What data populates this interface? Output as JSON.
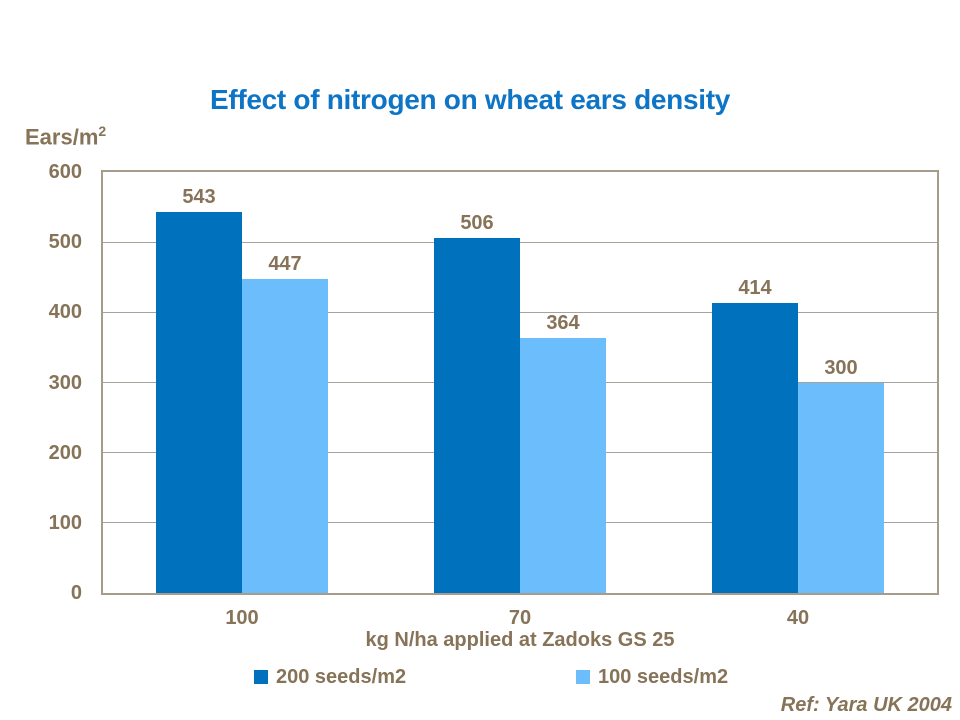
{
  "page": {
    "ref_note": "Ref: Yara UK 2004"
  },
  "colors": {
    "title_blue": "#0E74C6",
    "text_brown": "#867358",
    "frame_tan": "#A69C8B",
    "gridline_tan": "#A9A29A",
    "series1_blue": "#0071BD",
    "series2_blue": "#6CBDFC"
  },
  "y_axis": {
    "label_base": "Ears/m",
    "label_sup": "2"
  },
  "chart_data": {
    "type": "bar",
    "title": "Effect of nitrogen on wheat ears density",
    "categories": [
      "100",
      "70",
      "40"
    ],
    "series": [
      {
        "name": "200 seeds/m2",
        "values": [
          543,
          506,
          414
        ],
        "color": "#0071BD"
      },
      {
        "name": "100 seeds/m2",
        "values": [
          447,
          364,
          300
        ],
        "color": "#6CBDFC"
      }
    ],
    "xlabel": "kg N/ha applied at Zadoks GS 25",
    "ylabel": "Ears/m2",
    "ylim": [
      0,
      600
    ],
    "ytick_step": 100,
    "grid": true,
    "legend_position": "bottom"
  }
}
